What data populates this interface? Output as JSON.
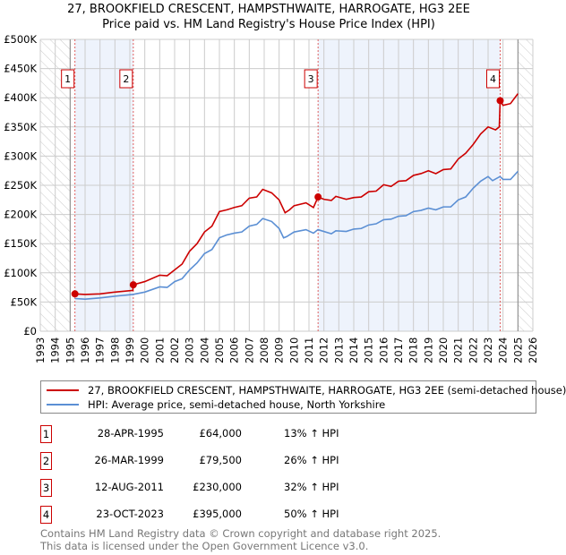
{
  "chart_data": {
    "type": "line",
    "title": "27, BROOKFIELD CRESCENT, HAMPSTHWAITE, HARROGATE, HG3 2EE",
    "subtitle": "Price paid vs. HM Land Registry's House Price Index (HPI)",
    "xlim": [
      1993,
      2026
    ],
    "ylim": [
      0,
      500000
    ],
    "x_ticks": [
      "1993",
      "1994",
      "1995",
      "1996",
      "1997",
      "1998",
      "1999",
      "2000",
      "2001",
      "2002",
      "2003",
      "2004",
      "2005",
      "2006",
      "2007",
      "2008",
      "2009",
      "2010",
      "2011",
      "2012",
      "2013",
      "2014",
      "2015",
      "2016",
      "2017",
      "2018",
      "2019",
      "2020",
      "2021",
      "2022",
      "2023",
      "2024",
      "2025",
      "2026"
    ],
    "y_ticks": [
      {
        "v": 0,
        "l": "£0"
      },
      {
        "v": 50000,
        "l": "£50K"
      },
      {
        "v": 100000,
        "l": "£100K"
      },
      {
        "v": 150000,
        "l": "£150K"
      },
      {
        "v": 200000,
        "l": "£200K"
      },
      {
        "v": 250000,
        "l": "£250K"
      },
      {
        "v": 300000,
        "l": "£300K"
      },
      {
        "v": 350000,
        "l": "£350K"
      },
      {
        "v": 400000,
        "l": "£400K"
      },
      {
        "v": 450000,
        "l": "£450K"
      },
      {
        "v": 500000,
        "l": "£500K"
      }
    ],
    "grid": true,
    "hatched_before": 1995.0,
    "hatched_after": 2025.0,
    "series": [
      {
        "name": "27, BROOKFIELD CRESCENT, HAMPSTHWAITE, HARROGATE, HG3 2EE (semi-detached house)",
        "color": "#cc0000",
        "x": [
          1995.32,
          1996,
          1997,
          1998,
          1999.2,
          1999.23,
          2000,
          2001,
          2001.5,
          2002,
          2002.5,
          2003,
          2003.5,
          2004,
          2004.5,
          2005,
          2005.5,
          2006,
          2006.5,
          2007,
          2007.5,
          2007.9,
          2008.5,
          2009,
          2009.4,
          2009.7,
          2010,
          2010.8,
          2011.3,
          2011.61,
          2012,
          2012.5,
          2012.8,
          2013.5,
          2014,
          2014.5,
          2015,
          2015.5,
          2016,
          2016.5,
          2017,
          2017.5,
          2018,
          2018.5,
          2019,
          2019.5,
          2020,
          2020.5,
          2021,
          2021.5,
          2022,
          2022.5,
          2023,
          2023.5,
          2023.75,
          2023.81,
          2024,
          2024.5,
          2025
        ],
        "y": [
          64000,
          63000,
          64000,
          67000,
          70000,
          79500,
          85000,
          96000,
          95000,
          105000,
          115000,
          137000,
          150000,
          170000,
          180000,
          205000,
          208000,
          212000,
          215000,
          228000,
          230000,
          243000,
          237000,
          225000,
          203000,
          208000,
          215000,
          220000,
          212000,
          230000,
          226000,
          224000,
          231000,
          226000,
          229000,
          230000,
          239000,
          240000,
          251000,
          248000,
          257000,
          258000,
          267000,
          270000,
          275000,
          270000,
          277000,
          278000,
          295000,
          305000,
          320000,
          338000,
          350000,
          345000,
          350000,
          395000,
          387000,
          390000,
          407000
        ]
      },
      {
        "name": "HPI: Average price, semi-detached house, North Yorkshire",
        "color": "#5b8fd4",
        "x": [
          1995.32,
          1996,
          1997,
          1998,
          1999.2,
          2000,
          2001,
          2001.5,
          2002,
          2002.5,
          2003,
          2003.5,
          2004,
          2004.5,
          2005,
          2005.5,
          2006,
          2006.5,
          2007,
          2007.5,
          2007.9,
          2008.5,
          2009,
          2009.3,
          2009.5,
          2010,
          2010.8,
          2011.3,
          2011.6,
          2012.5,
          2012.8,
          2013.5,
          2014,
          2014.5,
          2015,
          2015.5,
          2016,
          2016.5,
          2017,
          2017.5,
          2018,
          2018.5,
          2019,
          2019.5,
          2020,
          2020.5,
          2021,
          2021.5,
          2022,
          2022.5,
          2023,
          2023.3,
          2023.8,
          2024,
          2024.5,
          2025
        ],
        "y": [
          56000,
          55000,
          57000,
          60000,
          63000,
          67000,
          76000,
          75000,
          85000,
          90000,
          105000,
          117000,
          133000,
          140000,
          160000,
          165000,
          168000,
          170000,
          180000,
          183000,
          193000,
          188000,
          176000,
          160000,
          162000,
          170000,
          174000,
          168000,
          174000,
          167000,
          172000,
          171000,
          175000,
          176000,
          182000,
          184000,
          191000,
          192000,
          197000,
          198000,
          205000,
          207000,
          211000,
          208000,
          213000,
          213000,
          225000,
          230000,
          245000,
          257000,
          265000,
          258000,
          265000,
          260000,
          260000,
          274000
        ]
      }
    ],
    "sales": [
      {
        "n": "1",
        "x": 1995.32,
        "date": "28-APR-1995",
        "price": 64000,
        "price_label": "£64,000",
        "hpi": "13% ↑ HPI"
      },
      {
        "n": "2",
        "x": 1999.23,
        "date": "26-MAR-1999",
        "price": 79500,
        "price_label": "£79,500",
        "hpi": "26% ↑ HPI"
      },
      {
        "n": "3",
        "x": 2011.61,
        "date": "12-AUG-2011",
        "price": 230000,
        "price_label": "£230,000",
        "hpi": "32% ↑ HPI"
      },
      {
        "n": "4",
        "x": 2023.81,
        "date": "23-OCT-2023",
        "price": 395000,
        "price_label": "£395,000",
        "hpi": "50% ↑ HPI"
      }
    ]
  },
  "footer": {
    "line1": "Contains HM Land Registry data © Crown copyright and database right 2025.",
    "line2": "This data is licensed under the Open Government Licence v3.0."
  }
}
